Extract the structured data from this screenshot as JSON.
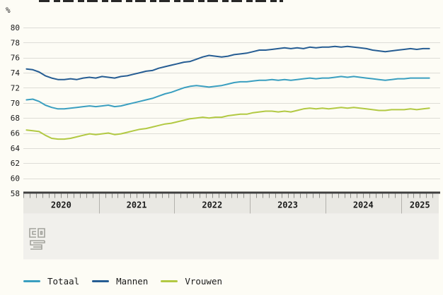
{
  "unit_label": "%",
  "chart_data": {
    "type": "line",
    "unit": "%",
    "grid": true,
    "legend_position": "bottom",
    "ylim": [
      58,
      80
    ],
    "y_ticks": [
      80,
      78,
      76,
      74,
      72,
      70,
      68,
      66,
      64,
      62,
      60,
      58
    ],
    "x_year_labels": [
      "2020",
      "2021",
      "2022",
      "2023",
      "2024",
      "2025"
    ],
    "x_monthly_range": "2020-01 t/m 2025-05",
    "months_per_year": 12,
    "months_in_last_year": 5,
    "colors": {
      "grid": "#deddd7",
      "axis_bar": "#3f3f3f",
      "tick": "#8f8f8a",
      "year_band": "#e9e8e3",
      "lower_band": "#f1f0ec",
      "divider": "#b3b1ac",
      "label_text": "#1a1a1a",
      "logo": "#a2a29c",
      "background": "#fdfcf5"
    },
    "series": [
      {
        "name": "Totaal",
        "color": "#3a9fc0",
        "values": [
          70.4,
          70.5,
          70.2,
          69.7,
          69.4,
          69.2,
          69.2,
          69.3,
          69.4,
          69.5,
          69.6,
          69.5,
          69.6,
          69.7,
          69.5,
          69.6,
          69.8,
          70.0,
          70.2,
          70.4,
          70.6,
          70.9,
          71.2,
          71.4,
          71.7,
          72.0,
          72.2,
          72.3,
          72.2,
          72.1,
          72.2,
          72.3,
          72.5,
          72.7,
          72.8,
          72.8,
          72.9,
          73.0,
          73.0,
          73.1,
          73.0,
          73.1,
          73.0,
          73.1,
          73.2,
          73.3,
          73.2,
          73.3,
          73.3,
          73.4,
          73.5,
          73.4,
          73.5,
          73.4,
          73.3,
          73.2,
          73.1,
          73.0,
          73.1,
          73.2,
          73.2,
          73.3,
          73.3,
          73.3,
          73.3
        ]
      },
      {
        "name": "Mannen",
        "color": "#265d93",
        "values": [
          74.5,
          74.4,
          74.1,
          73.6,
          73.3,
          73.1,
          73.1,
          73.2,
          73.1,
          73.3,
          73.4,
          73.3,
          73.5,
          73.4,
          73.3,
          73.5,
          73.6,
          73.8,
          74.0,
          74.2,
          74.3,
          74.6,
          74.8,
          75.0,
          75.2,
          75.4,
          75.5,
          75.8,
          76.1,
          76.3,
          76.2,
          76.1,
          76.2,
          76.4,
          76.5,
          76.6,
          76.8,
          77.0,
          77.0,
          77.1,
          77.2,
          77.3,
          77.2,
          77.3,
          77.2,
          77.4,
          77.3,
          77.4,
          77.4,
          77.5,
          77.4,
          77.5,
          77.4,
          77.3,
          77.2,
          77.0,
          76.9,
          76.8,
          76.9,
          77.0,
          77.1,
          77.2,
          77.1,
          77.2,
          77.2
        ]
      },
      {
        "name": "Vrouwen",
        "color": "#b2c943",
        "values": [
          66.4,
          66.3,
          66.2,
          65.7,
          65.3,
          65.2,
          65.2,
          65.3,
          65.5,
          65.7,
          65.9,
          65.8,
          65.9,
          66.0,
          65.8,
          65.9,
          66.1,
          66.3,
          66.5,
          66.6,
          66.8,
          67.0,
          67.2,
          67.3,
          67.5,
          67.7,
          67.9,
          68.0,
          68.1,
          68.0,
          68.1,
          68.1,
          68.3,
          68.4,
          68.5,
          68.5,
          68.7,
          68.8,
          68.9,
          68.9,
          68.8,
          68.9,
          68.8,
          69.0,
          69.2,
          69.3,
          69.2,
          69.3,
          69.2,
          69.3,
          69.4,
          69.3,
          69.4,
          69.3,
          69.2,
          69.1,
          69.0,
          69.0,
          69.1,
          69.1,
          69.1,
          69.2,
          69.1,
          69.2,
          69.3
        ]
      }
    ]
  },
  "branding": {
    "logo": "cbs-logo"
  }
}
